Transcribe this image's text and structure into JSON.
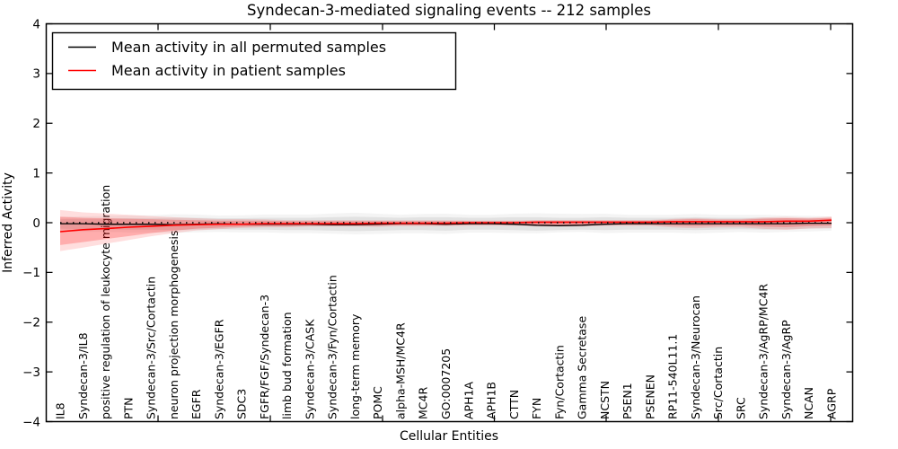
{
  "title": "Syndecan-3-mediated signaling events -- 212 samples",
  "axis": {
    "ylabel": "Inferred Activity",
    "xlabel": "Cellular Entities"
  },
  "legend": {
    "items": [
      {
        "label": "Mean activity in all permuted samples",
        "color": "#000000"
      },
      {
        "label": "Mean activity in patient samples",
        "color": "#ff0000"
      }
    ]
  },
  "chart_data": {
    "type": "line",
    "title": "Syndecan-3-mediated signaling events -- 212 samples",
    "xlabel": "Cellular Entities",
    "ylabel": "Inferred Activity",
    "ylim": [
      -4,
      4
    ],
    "yticks": [
      4,
      3,
      2,
      1,
      0,
      -1,
      -2,
      -3,
      -4
    ],
    "grid": false,
    "zero_line": true,
    "legend_position": "upper left",
    "categories": [
      "IL8",
      "Syndecan-3/IL8",
      "positive regulation of leukocyte migration",
      "PTN",
      "Syndecan-3/Src/Cortactin",
      "neuron projection morphogenesis",
      "EGFR",
      "Syndecan-3/EGFR",
      "SDC3",
      "FGFR/FGF/Syndecan-3",
      "limb bud formation",
      "Syndecan-3/CASK",
      "Syndecan-3/Fyn/Cortactin",
      "long-term memory",
      "POMC",
      "alpha-MSH/MC4R",
      "MC4R",
      "GO:0007205",
      "APH1A",
      "APH1B",
      "CTTN",
      "FYN",
      "Fyn/Cortactin",
      "Gamma Secretase",
      "NCSTN",
      "PSEN1",
      "PSENEN",
      "RP11-540L11.1",
      "Syndecan-3/Neurocan",
      "Src/Cortactin",
      "SRC",
      "Syndecan-3/AgRP/MC4R",
      "Syndecan-3/AgRP",
      "NCAN",
      "AGRP"
    ],
    "series": [
      {
        "name": "Mean activity in all permuted samples",
        "color": "#000000",
        "band_color": "#888888",
        "band_alpha": 0.16,
        "outer_band_scale": 1.5,
        "outer_band_alpha": 0.09,
        "values": [
          -0.02,
          -0.02,
          -0.03,
          -0.03,
          -0.03,
          -0.04,
          -0.03,
          -0.02,
          -0.03,
          -0.03,
          -0.03,
          -0.03,
          -0.04,
          -0.04,
          -0.03,
          -0.02,
          -0.02,
          -0.03,
          -0.02,
          -0.02,
          -0.03,
          -0.05,
          -0.06,
          -0.05,
          -0.03,
          -0.02,
          -0.02,
          -0.02,
          -0.02,
          -0.02,
          -0.02,
          -0.02,
          -0.02,
          -0.01,
          -0.01
        ],
        "band_hi": [
          0.07,
          0.08,
          0.08,
          0.09,
          0.09,
          0.1,
          0.1,
          0.09,
          0.09,
          0.1,
          0.1,
          0.1,
          0.11,
          0.12,
          0.11,
          0.1,
          0.11,
          0.11,
          0.1,
          0.1,
          0.11,
          0.11,
          0.1,
          0.1,
          0.11,
          0.1,
          0.1,
          0.1,
          0.11,
          0.1,
          0.1,
          0.1,
          0.09,
          0.09,
          0.08
        ],
        "band_lo": [
          -0.12,
          -0.13,
          -0.13,
          -0.14,
          -0.14,
          -0.15,
          -0.14,
          -0.13,
          -0.14,
          -0.14,
          -0.15,
          -0.15,
          -0.16,
          -0.17,
          -0.16,
          -0.15,
          -0.15,
          -0.16,
          -0.14,
          -0.14,
          -0.15,
          -0.16,
          -0.15,
          -0.14,
          -0.15,
          -0.14,
          -0.14,
          -0.14,
          -0.15,
          -0.14,
          -0.13,
          -0.14,
          -0.13,
          -0.12,
          -0.11
        ]
      },
      {
        "name": "Mean activity in patient samples",
        "color": "#ff0000",
        "band_color": "#ff0000",
        "band_alpha": 0.22,
        "outer_band_scale": 1.45,
        "outer_band_alpha": 0.13,
        "values": [
          -0.18,
          -0.14,
          -0.12,
          -0.09,
          -0.07,
          -0.05,
          -0.04,
          -0.03,
          -0.03,
          -0.02,
          -0.02,
          -0.02,
          -0.02,
          -0.02,
          -0.01,
          -0.01,
          -0.01,
          -0.01,
          0.0,
          0.0,
          0.0,
          0.01,
          0.01,
          0.01,
          0.01,
          0.01,
          0.01,
          0.02,
          0.02,
          0.02,
          0.02,
          0.02,
          0.03,
          0.03,
          0.05
        ],
        "band_hi": [
          0.12,
          0.1,
          0.09,
          0.08,
          0.07,
          0.06,
          0.05,
          0.04,
          0.04,
          0.04,
          0.03,
          0.03,
          0.03,
          0.03,
          0.03,
          0.03,
          0.03,
          0.03,
          0.03,
          0.03,
          0.03,
          0.04,
          0.04,
          0.04,
          0.04,
          0.04,
          0.04,
          0.06,
          0.07,
          0.06,
          0.06,
          0.08,
          0.09,
          0.08,
          0.1
        ],
        "band_lo": [
          -0.45,
          -0.39,
          -0.33,
          -0.27,
          -0.21,
          -0.16,
          -0.12,
          -0.1,
          -0.08,
          -0.07,
          -0.07,
          -0.06,
          -0.06,
          -0.06,
          -0.06,
          -0.05,
          -0.05,
          -0.05,
          -0.04,
          -0.04,
          -0.04,
          -0.05,
          -0.05,
          -0.05,
          -0.04,
          -0.04,
          -0.04,
          -0.06,
          -0.07,
          -0.06,
          -0.06,
          -0.08,
          -0.09,
          -0.07,
          -0.06
        ]
      }
    ]
  }
}
